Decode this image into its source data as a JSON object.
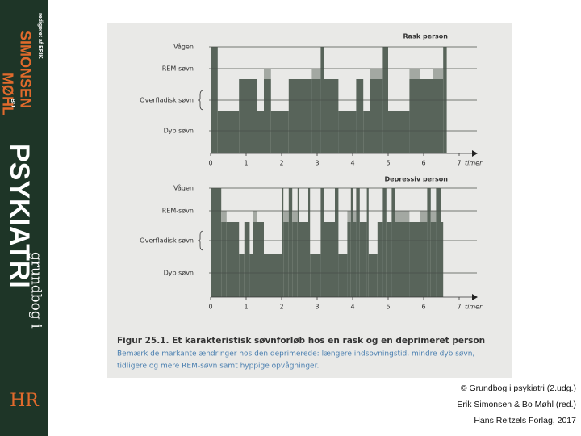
{
  "chart_data": [
    {
      "type": "step",
      "title": "Rask person",
      "categories": [
        "Vågen",
        "REM-søvn",
        "Overfladisk søvn",
        "Dyb søvn"
      ],
      "segments": [
        {
          "start": 0,
          "end": 0.2,
          "stage": 0
        },
        {
          "start": 0.2,
          "end": 0.8,
          "stage": 3
        },
        {
          "start": 0.8,
          "end": 1.3,
          "stage": 2
        },
        {
          "start": 1.3,
          "end": 1.5,
          "stage": 3
        },
        {
          "start": 1.5,
          "end": 1.7,
          "stage": 1
        },
        {
          "start": 1.7,
          "end": 2.2,
          "stage": 3
        },
        {
          "start": 2.2,
          "end": 2.85,
          "stage": 2
        },
        {
          "start": 2.85,
          "end": 3.1,
          "stage": 1
        },
        {
          "start": 3.1,
          "end": 3.2,
          "stage": 0
        },
        {
          "start": 3.2,
          "end": 3.6,
          "stage": 2
        },
        {
          "start": 3.6,
          "end": 4.1,
          "stage": 3
        },
        {
          "start": 4.1,
          "end": 4.3,
          "stage": 2
        },
        {
          "start": 4.3,
          "end": 4.5,
          "stage": 3
        },
        {
          "start": 4.5,
          "end": 4.85,
          "stage": 1
        },
        {
          "start": 4.85,
          "end": 5.0,
          "stage": 0
        },
        {
          "start": 5.0,
          "end": 5.6,
          "stage": 3
        },
        {
          "start": 5.6,
          "end": 5.9,
          "stage": 1
        },
        {
          "start": 5.9,
          "end": 6.25,
          "stage": 2
        },
        {
          "start": 6.25,
          "end": 6.55,
          "stage": 1
        },
        {
          "start": 6.55,
          "end": 6.65,
          "stage": 0
        }
      ],
      "xlim": [
        0,
        7.5
      ],
      "xticks": [
        0,
        1,
        2,
        3,
        4,
        5,
        6,
        7
      ],
      "xlabel": "timer",
      "color": "#58645a",
      "rem_color": "#a3a8a2"
    },
    {
      "type": "step",
      "title": "Depressiv person",
      "categories": [
        "Vågen",
        "REM-søvn",
        "Overfladisk søvn",
        "Dyb søvn"
      ],
      "segments": [
        {
          "start": 0,
          "end": 0.3,
          "stage": 0
        },
        {
          "start": 0.3,
          "end": 0.45,
          "stage": 1
        },
        {
          "start": 0.45,
          "end": 0.8,
          "stage": 2
        },
        {
          "start": 0.8,
          "end": 0.95,
          "stage": 3
        },
        {
          "start": 0.95,
          "end": 1.1,
          "stage": 2
        },
        {
          "start": 1.1,
          "end": 1.2,
          "stage": 3
        },
        {
          "start": 1.2,
          "end": 1.3,
          "stage": 1
        },
        {
          "start": 1.3,
          "end": 1.5,
          "stage": 2
        },
        {
          "start": 1.5,
          "end": 2.0,
          "stage": 3
        },
        {
          "start": 2.0,
          "end": 2.05,
          "stage": 0
        },
        {
          "start": 2.05,
          "end": 2.2,
          "stage": 1
        },
        {
          "start": 2.2,
          "end": 2.3,
          "stage": 0
        },
        {
          "start": 2.3,
          "end": 2.45,
          "stage": 1
        },
        {
          "start": 2.45,
          "end": 2.5,
          "stage": 0
        },
        {
          "start": 2.5,
          "end": 2.75,
          "stage": 2
        },
        {
          "start": 2.75,
          "end": 2.8,
          "stage": 0
        },
        {
          "start": 2.8,
          "end": 3.1,
          "stage": 3
        },
        {
          "start": 3.1,
          "end": 3.2,
          "stage": 0
        },
        {
          "start": 3.2,
          "end": 3.5,
          "stage": 2
        },
        {
          "start": 3.5,
          "end": 3.6,
          "stage": 0
        },
        {
          "start": 3.6,
          "end": 3.85,
          "stage": 3
        },
        {
          "start": 3.85,
          "end": 3.95,
          "stage": 1
        },
        {
          "start": 3.95,
          "end": 4.0,
          "stage": 0
        },
        {
          "start": 4.0,
          "end": 4.1,
          "stage": 1
        },
        {
          "start": 4.1,
          "end": 4.2,
          "stage": 0
        },
        {
          "start": 4.2,
          "end": 4.4,
          "stage": 2
        },
        {
          "start": 4.4,
          "end": 4.45,
          "stage": 0
        },
        {
          "start": 4.45,
          "end": 4.7,
          "stage": 3
        },
        {
          "start": 4.7,
          "end": 4.85,
          "stage": 2
        },
        {
          "start": 4.85,
          "end": 4.95,
          "stage": 0
        },
        {
          "start": 4.95,
          "end": 5.1,
          "stage": 2
        },
        {
          "start": 5.1,
          "end": 5.2,
          "stage": 0
        },
        {
          "start": 5.2,
          "end": 5.6,
          "stage": 1
        },
        {
          "start": 5.6,
          "end": 5.9,
          "stage": 2
        },
        {
          "start": 5.9,
          "end": 6.1,
          "stage": 1
        },
        {
          "start": 6.1,
          "end": 6.2,
          "stage": 0
        },
        {
          "start": 6.2,
          "end": 6.35,
          "stage": 1
        },
        {
          "start": 6.35,
          "end": 6.5,
          "stage": 0
        },
        {
          "start": 6.5,
          "end": 6.55,
          "stage": 2
        }
      ],
      "xlim": [
        0,
        7.5
      ],
      "xticks": [
        0,
        1,
        2,
        3,
        4,
        5,
        6,
        7
      ],
      "xlabel": "timer",
      "color": "#58645a",
      "rem_color": "#a3a8a2"
    }
  ],
  "caption": {
    "title": "Figur 25.1. Et karakteristisk søvnforløb hos en rask og en deprimeret person",
    "lines": [
      "Bemærk de markante ændringer hos den deprimerede: længere indsovningstid, mindre dyb søvn,",
      "tidligere og mere REM-søvn samt hyppige opvågninger."
    ]
  },
  "sidebar": {
    "editor_note": "redigeret af ERIK",
    "author1": "SIMONSEN",
    "co": "BO",
    "author2": "MØHL",
    "title": "PSYKIATRI",
    "subtitle": "grundbog i",
    "logo": "HR"
  },
  "credits": [
    "© Grundbog i psykiatri (2.udg.)",
    "Erik Simonsen & Bo Møhl (red.)",
    "Hans Reitzels Forlag, 2017"
  ]
}
